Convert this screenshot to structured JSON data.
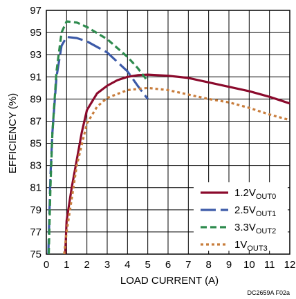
{
  "chart_data": {
    "type": "line",
    "xlabel": "LOAD CURRENT (A)",
    "ylabel": "EFFICIENCY (%)",
    "xlim": [
      0,
      12
    ],
    "ylim": [
      75,
      97
    ],
    "x_ticks": [
      0,
      1,
      2,
      3,
      4,
      5,
      6,
      7,
      8,
      9,
      10,
      11,
      12
    ],
    "y_ticks": [
      75,
      77,
      79,
      81,
      83,
      85,
      87,
      89,
      91,
      93,
      95,
      97
    ],
    "grid": true,
    "legend_position": "bottom-right",
    "figure_code": "DC2659A F02a",
    "series": [
      {
        "name": "1.2V",
        "name_sub": "OUT0",
        "color": "#8b0a2c",
        "style": "solid",
        "points": [
          [
            0.93,
            75
          ],
          [
            1.0,
            78
          ],
          [
            1.25,
            81
          ],
          [
            1.5,
            83.5
          ],
          [
            1.75,
            86
          ],
          [
            2.0,
            88
          ],
          [
            2.5,
            89.5
          ],
          [
            3.0,
            90.2
          ],
          [
            3.5,
            90.7
          ],
          [
            4.0,
            91.0
          ],
          [
            4.5,
            91.15
          ],
          [
            5.0,
            91.2
          ],
          [
            6.0,
            91.1
          ],
          [
            7.0,
            90.9
          ],
          [
            8.0,
            90.5
          ],
          [
            9.0,
            90.1
          ],
          [
            10.0,
            89.7
          ],
          [
            11.0,
            89.2
          ],
          [
            12.0,
            88.6
          ]
        ]
      },
      {
        "name": "2.5V",
        "name_sub": "OUT1",
        "color": "#3c5aa8",
        "style": "longdash",
        "points": [
          [
            0.1,
            75
          ],
          [
            0.2,
            82
          ],
          [
            0.3,
            86
          ],
          [
            0.5,
            91
          ],
          [
            0.75,
            93.8
          ],
          [
            1.0,
            94.6
          ],
          [
            1.5,
            94.5
          ],
          [
            2.0,
            94.2
          ],
          [
            3.0,
            93.2
          ],
          [
            4.0,
            91.5
          ],
          [
            4.5,
            90.2
          ],
          [
            5.0,
            89.0
          ]
        ]
      },
      {
        "name": "3.3V",
        "name_sub": "OUT2",
        "color": "#2e8b4e",
        "style": "dashed",
        "points": [
          [
            0.12,
            75
          ],
          [
            0.2,
            81
          ],
          [
            0.3,
            86
          ],
          [
            0.5,
            91.5
          ],
          [
            0.75,
            95.0
          ],
          [
            1.0,
            96.0
          ],
          [
            1.5,
            95.9
          ],
          [
            2.0,
            95.5
          ],
          [
            3.0,
            94.4
          ],
          [
            4.0,
            92.8
          ],
          [
            4.5,
            91.8
          ],
          [
            5.0,
            90.6
          ]
        ]
      },
      {
        "name": "1V",
        "name_sub": "OUT3",
        "color": "#c87d3c",
        "style": "dotted",
        "points": [
          [
            0.88,
            75
          ],
          [
            1.0,
            77
          ],
          [
            1.25,
            80
          ],
          [
            1.5,
            83
          ],
          [
            2.0,
            86.8
          ],
          [
            2.5,
            88.3
          ],
          [
            3.0,
            89.1
          ],
          [
            4.0,
            89.8
          ],
          [
            5.0,
            90.0
          ],
          [
            6.0,
            89.8
          ],
          [
            7.0,
            89.4
          ],
          [
            8.0,
            89.0
          ],
          [
            9.0,
            88.7
          ],
          [
            10.0,
            88.2
          ],
          [
            11.0,
            87.6
          ],
          [
            12.0,
            87.1
          ]
        ]
      }
    ]
  }
}
